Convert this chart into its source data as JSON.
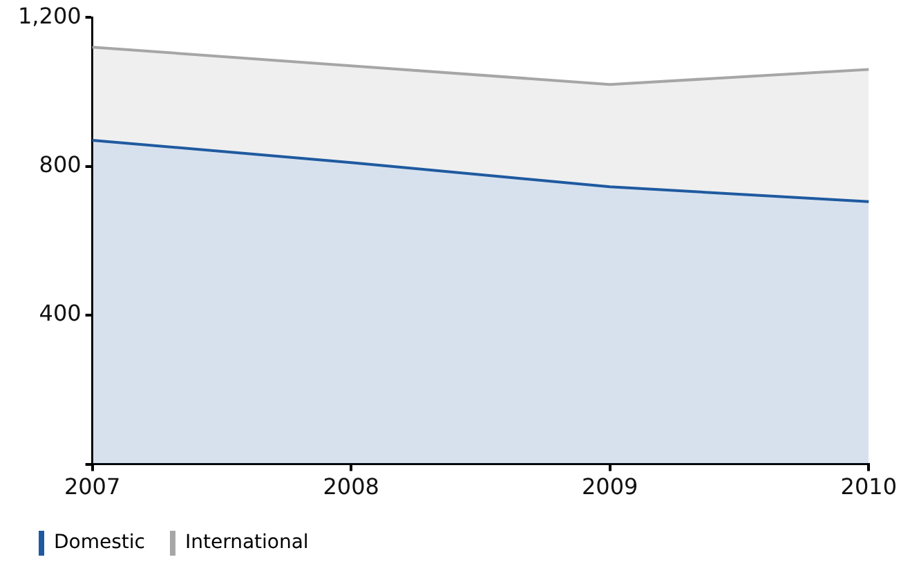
{
  "chart_data": {
    "type": "area",
    "stacked": true,
    "categories": [
      "2007",
      "2008",
      "2009",
      "2010"
    ],
    "series": [
      {
        "name": "Domestic",
        "color": "#1f5aa0",
        "values": [
          870,
          810,
          745,
          705
        ]
      },
      {
        "name": "International",
        "color": "#a6a6a6",
        "values": [
          250,
          260,
          275,
          355
        ]
      }
    ],
    "ylim": [
      0,
      1200
    ],
    "yticks": [
      {
        "value": 0,
        "label": null
      },
      400,
      800,
      {
        "value": 1200,
        "label": "1,200"
      }
    ],
    "grid": false,
    "legend": "bottom left",
    "marker": "none",
    "line_style": "solid"
  }
}
